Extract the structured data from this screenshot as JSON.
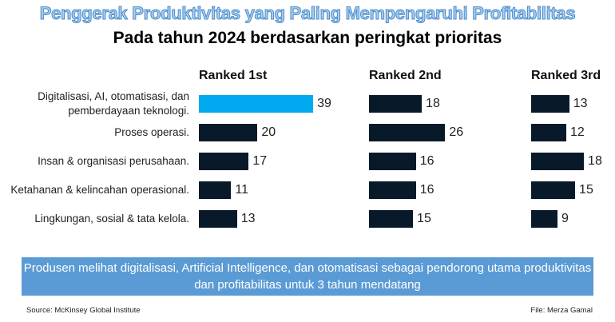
{
  "title": "Penggerak Produktivitas yang Paling Mempengaruhi Profitabilitas",
  "subtitle": "Pada tahun 2024 berdasarkan peringkat prioritas",
  "chart_data": {
    "type": "bar",
    "orientation": "horizontal",
    "categories": [
      "Digitalisasi, AI, otomatisasi, dan pemberdayaan teknologi.",
      "Proses operasi.",
      "Insan & organisasi perusahaan.",
      "Ketahanan & kelincahan operasional.",
      "Lingkungan, sosial & tata kelola."
    ],
    "series": [
      {
        "name": "Ranked 1st",
        "values": [
          39,
          20,
          17,
          11,
          13
        ]
      },
      {
        "name": "Ranked 2nd",
        "values": [
          18,
          26,
          16,
          16,
          15
        ]
      },
      {
        "name": "Ranked 3rd",
        "values": [
          13,
          12,
          18,
          15,
          9
        ]
      }
    ],
    "highlight": {
      "series": 0,
      "index": 0,
      "color": "#00a9f0"
    },
    "bar_color": "#08192a",
    "grid": false
  },
  "banner": "Produsen melihat digitalisasi, Artificial Intelligence, dan otomatisasi sebagai pendorong utama produktivitas dan profitabilitas untuk 3 tahun mendatang",
  "banner_color": "#5b9bd5",
  "source": "Source: McKinsey Global Institute",
  "file": "File: Merza Gamal"
}
